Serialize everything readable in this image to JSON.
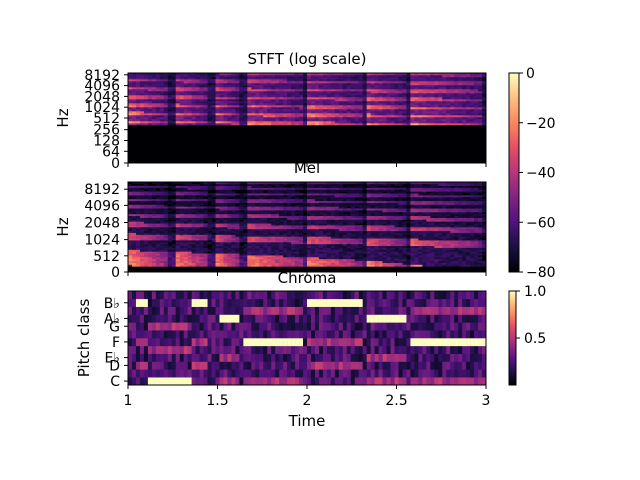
{
  "chart_data": [
    {
      "type": "heatmap",
      "title": "STFT (log scale)",
      "ylabel": "Hz",
      "yscale": "log",
      "yticks": [
        "0",
        "64",
        "128",
        "256",
        "512",
        "1024",
        "2048",
        "4096",
        "8192"
      ],
      "xlim": [
        1,
        3
      ],
      "colorbar": {
        "ticks": [
          "0",
          "−20",
          "−40",
          "−60",
          "−80"
        ],
        "range": [
          -80,
          0
        ]
      }
    },
    {
      "type": "heatmap",
      "title": "Mel",
      "ylabel": "Hz",
      "yscale": "mel",
      "yticks": [
        "0",
        "512",
        "1024",
        "2048",
        "4096",
        "8192"
      ],
      "xlim": [
        1,
        3
      ]
    },
    {
      "type": "heatmap",
      "title": "Chroma",
      "ylabel": "Pitch class",
      "xlabel": "Time",
      "yticks": [
        "C",
        "D",
        "E♭",
        "F",
        "G",
        "A♭",
        "B♭"
      ],
      "xticks": [
        "1",
        "1.5",
        "2",
        "2.5",
        "3"
      ],
      "xlim": [
        1,
        3
      ],
      "colorbar": {
        "ticks": [
          "1.0",
          "0.5"
        ],
        "range": [
          0,
          1
        ]
      },
      "dominant_notes": [
        {
          "note": "B♭",
          "start": 1.05,
          "end": 1.12
        },
        {
          "note": "C",
          "start": 1.12,
          "end": 1.35
        },
        {
          "note": "B♭",
          "start": 1.35,
          "end": 1.45
        },
        {
          "note": "A♭",
          "start": 1.52,
          "end": 1.62
        },
        {
          "note": "F",
          "start": 1.65,
          "end": 1.98
        },
        {
          "note": "B♭",
          "start": 2.0,
          "end": 2.32
        },
        {
          "note": "A♭",
          "start": 2.33,
          "end": 2.55
        },
        {
          "note": "F",
          "start": 2.58,
          "end": 3.0
        }
      ]
    }
  ]
}
